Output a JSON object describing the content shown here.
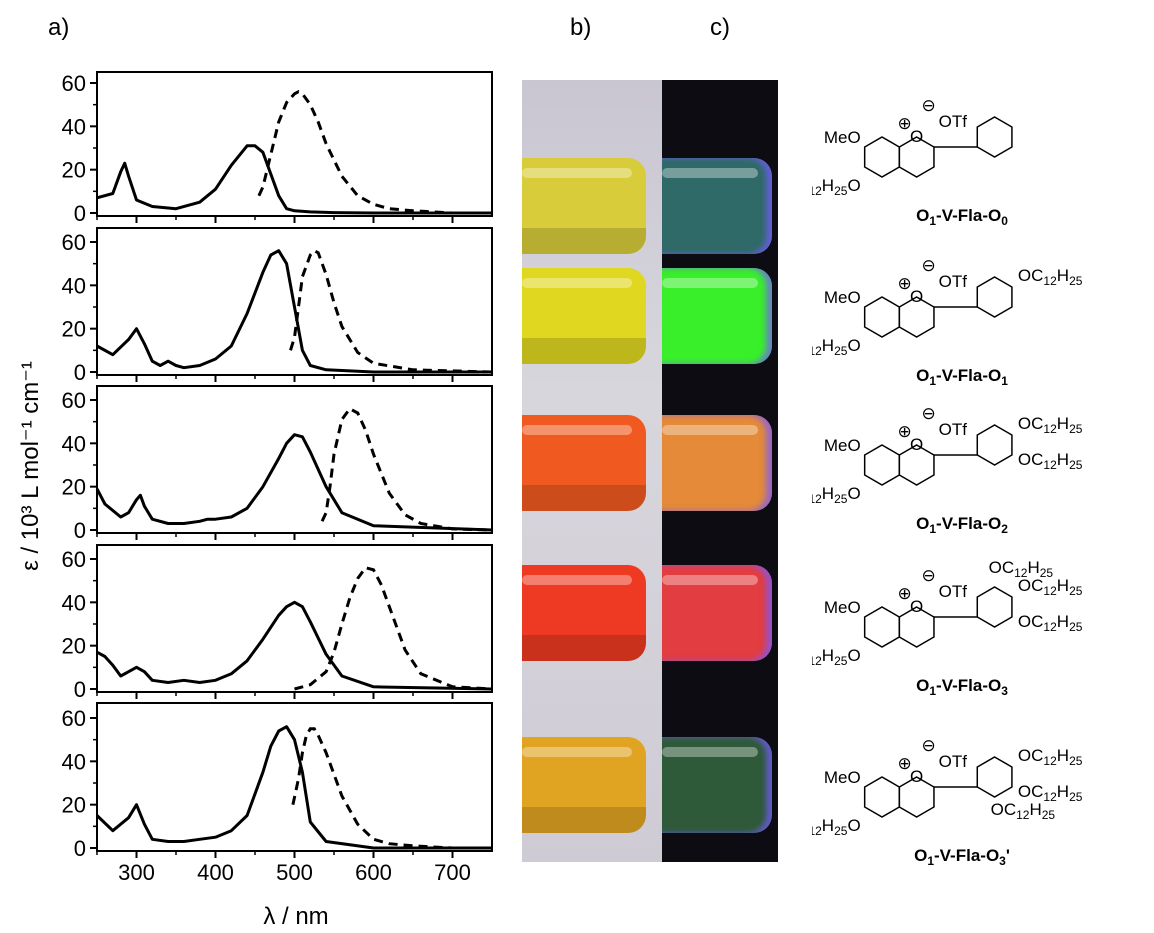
{
  "panel_labels": {
    "a": "a)",
    "b": "b)",
    "c": "c)"
  },
  "chart_data": {
    "type": "line",
    "panels": 5,
    "xlabel": "λ / nm",
    "ylabel": "ε / 10³ L mol⁻¹ cm⁻¹",
    "xlim": [
      250,
      750
    ],
    "ylim": [
      0,
      65
    ],
    "x_ticks": [
      300,
      400,
      500,
      600,
      700
    ],
    "y_ticks": [
      0,
      20,
      40,
      60
    ],
    "series_styles": {
      "absorption": "solid",
      "emission": "dashed"
    },
    "data": [
      {
        "absorption": {
          "x": [
            250,
            270,
            280,
            285,
            290,
            300,
            320,
            350,
            380,
            400,
            420,
            440,
            450,
            460,
            470,
            480,
            490,
            500,
            520,
            550,
            600,
            700,
            750
          ],
          "y": [
            7,
            9,
            19,
            23,
            17,
            6,
            3,
            2,
            5,
            11,
            22,
            31,
            31,
            28,
            18,
            8,
            2,
            1,
            0.5,
            0.2,
            0,
            0,
            0
          ]
        },
        "emission": {
          "x": [
            455,
            460,
            470,
            480,
            490,
            500,
            505,
            510,
            520,
            530,
            540,
            560,
            580,
            600,
            620,
            650,
            700,
            750
          ],
          "y": [
            8,
            12,
            27,
            42,
            51,
            55,
            56,
            55,
            50,
            42,
            32,
            17,
            8,
            4,
            2,
            1,
            0,
            0
          ]
        }
      },
      {
        "absorption": {
          "x": [
            250,
            270,
            290,
            300,
            310,
            320,
            330,
            340,
            350,
            360,
            380,
            400,
            420,
            440,
            460,
            470,
            480,
            490,
            500,
            510,
            520,
            540,
            600,
            750
          ],
          "y": [
            12,
            8,
            15,
            20,
            13,
            5,
            3,
            5,
            3,
            2,
            3,
            6,
            12,
            27,
            46,
            54,
            56,
            50,
            30,
            10,
            3,
            1,
            0,
            0
          ]
        },
        "emission": {
          "x": [
            495,
            500,
            505,
            510,
            520,
            525,
            530,
            540,
            550,
            560,
            580,
            600,
            650,
            750
          ],
          "y": [
            10,
            16,
            30,
            44,
            54,
            56,
            55,
            45,
            32,
            21,
            9,
            4,
            1,
            0
          ]
        }
      },
      {
        "absorption": {
          "x": [
            250,
            260,
            280,
            290,
            300,
            305,
            310,
            320,
            340,
            360,
            380,
            390,
            400,
            420,
            440,
            460,
            480,
            490,
            500,
            510,
            520,
            540,
            560,
            600,
            750
          ],
          "y": [
            19,
            12,
            6,
            8,
            14,
            16,
            11,
            5,
            3,
            3,
            4,
            5,
            5,
            6,
            10,
            20,
            33,
            40,
            44,
            43,
            36,
            20,
            8,
            2,
            0
          ]
        },
        "emission": {
          "x": [
            535,
            540,
            545,
            550,
            560,
            570,
            580,
            590,
            600,
            620,
            640,
            660,
            700,
            750
          ],
          "y": [
            4,
            8,
            20,
            35,
            51,
            56,
            54,
            46,
            35,
            17,
            7,
            3,
            0.5,
            0
          ]
        }
      },
      {
        "absorption": {
          "x": [
            250,
            260,
            270,
            280,
            290,
            300,
            310,
            320,
            340,
            360,
            380,
            400,
            420,
            440,
            460,
            480,
            490,
            500,
            510,
            520,
            540,
            560,
            600,
            750
          ],
          "y": [
            17,
            15,
            11,
            6,
            8,
            10,
            8,
            4,
            3,
            4,
            3,
            4,
            7,
            13,
            23,
            34,
            38,
            40,
            38,
            31,
            16,
            6,
            1,
            0
          ]
        },
        "emission": {
          "x": [
            500,
            520,
            540,
            550,
            560,
            570,
            580,
            590,
            600,
            610,
            620,
            640,
            660,
            700,
            750
          ],
          "y": [
            0,
            2,
            8,
            17,
            30,
            42,
            51,
            56,
            55,
            48,
            38,
            18,
            7,
            1,
            0
          ]
        }
      },
      {
        "absorption": {
          "x": [
            250,
            270,
            290,
            300,
            310,
            320,
            340,
            360,
            380,
            400,
            420,
            440,
            460,
            470,
            480,
            490,
            500,
            510,
            520,
            540,
            600,
            750
          ],
          "y": [
            15,
            8,
            14,
            20,
            11,
            4,
            3,
            3,
            4,
            5,
            8,
            15,
            35,
            47,
            54,
            56,
            50,
            35,
            12,
            3,
            0,
            0
          ]
        },
        "emission": {
          "x": [
            498,
            505,
            510,
            515,
            520,
            525,
            530,
            540,
            550,
            560,
            580,
            600,
            620,
            650,
            700,
            750
          ],
          "y": [
            20,
            32,
            44,
            52,
            55,
            55,
            52,
            44,
            34,
            24,
            11,
            4,
            2,
            1,
            0,
            0
          ]
        }
      }
    ]
  },
  "photo_b": {
    "tube_colors": [
      "#d8cc3a",
      "#e0d720",
      "#f05a20",
      "#ee3a22",
      "#e0a422"
    ]
  },
  "photo_c": {
    "tube_colors": [
      "#2f6a68",
      "#39ef2a",
      "#e48a38",
      "#e23d40",
      "#2e5a3a"
    ]
  },
  "compounds": [
    {
      "label_main": "O",
      "label_sub1": "1",
      "label_mid": "-V-Fla-O",
      "label_sub2": "0",
      "prime": "",
      "meo": "MeO",
      "c12": "C",
      "c12_sub1": "12",
      "c12_h": "H",
      "c12_sub2": "25",
      "c12_o": "O",
      "counterion": "OTf",
      "plus": "⊕",
      "minus": "⊖",
      "ring_o": "O",
      "substituents": []
    },
    {
      "label_main": "O",
      "label_sub1": "1",
      "label_mid": "-V-Fla-O",
      "label_sub2": "1",
      "prime": "",
      "meo": "MeO",
      "c12": "C",
      "c12_sub1": "12",
      "c12_h": "H",
      "c12_sub2": "25",
      "c12_o": "O",
      "counterion": "OTf",
      "plus": "⊕",
      "minus": "⊖",
      "ring_o": "O",
      "substituents": [
        {
          "pos": "para",
          "t1": "OC",
          "s1": "12",
          "t2": "H",
          "s2": "25"
        }
      ]
    },
    {
      "label_main": "O",
      "label_sub1": "1",
      "label_mid": "-V-Fla-O",
      "label_sub2": "2",
      "prime": "",
      "meo": "MeO",
      "c12": "C",
      "c12_sub1": "12",
      "c12_h": "H",
      "c12_sub2": "25",
      "c12_o": "O",
      "counterion": "OTf",
      "plus": "⊕",
      "minus": "⊖",
      "ring_o": "O",
      "substituents": [
        {
          "pos": "para",
          "t1": "OC",
          "s1": "12",
          "t2": "H",
          "s2": "25"
        },
        {
          "pos": "meta",
          "t1": "OC",
          "s1": "12",
          "t2": "H",
          "s2": "25"
        }
      ]
    },
    {
      "label_main": "O",
      "label_sub1": "1",
      "label_mid": "-V-Fla-O",
      "label_sub2": "3",
      "prime": "",
      "meo": "MeO",
      "c12": "C",
      "c12_sub1": "12",
      "c12_h": "H",
      "c12_sub2": "25",
      "c12_o": "O",
      "counterion": "OTf",
      "plus": "⊕",
      "minus": "⊖",
      "ring_o": "O",
      "substituents": [
        {
          "pos": "top",
          "t1": "OC",
          "s1": "12",
          "t2": "H",
          "s2": "25"
        },
        {
          "pos": "para",
          "t1": "OC",
          "s1": "12",
          "t2": "H",
          "s2": "25"
        },
        {
          "pos": "meta",
          "t1": "OC",
          "s1": "12",
          "t2": "H",
          "s2": "25"
        }
      ]
    },
    {
      "label_main": "O",
      "label_sub1": "1",
      "label_mid": "-V-Fla-O",
      "label_sub2": "3",
      "prime": "'",
      "meo": "MeO",
      "c12": "C",
      "c12_sub1": "12",
      "c12_h": "H",
      "c12_sub2": "25",
      "c12_o": "O",
      "counterion": "OTf",
      "plus": "⊕",
      "minus": "⊖",
      "ring_o": "O",
      "substituents": [
        {
          "pos": "para",
          "t1": "OC",
          "s1": "12",
          "t2": "H",
          "s2": "25"
        },
        {
          "pos": "meta",
          "t1": "OC",
          "s1": "12",
          "t2": "H",
          "s2": "25"
        },
        {
          "pos": "ortho",
          "t1": "OC",
          "s1": "12",
          "t2": "H",
          "s2": "25"
        }
      ]
    }
  ]
}
